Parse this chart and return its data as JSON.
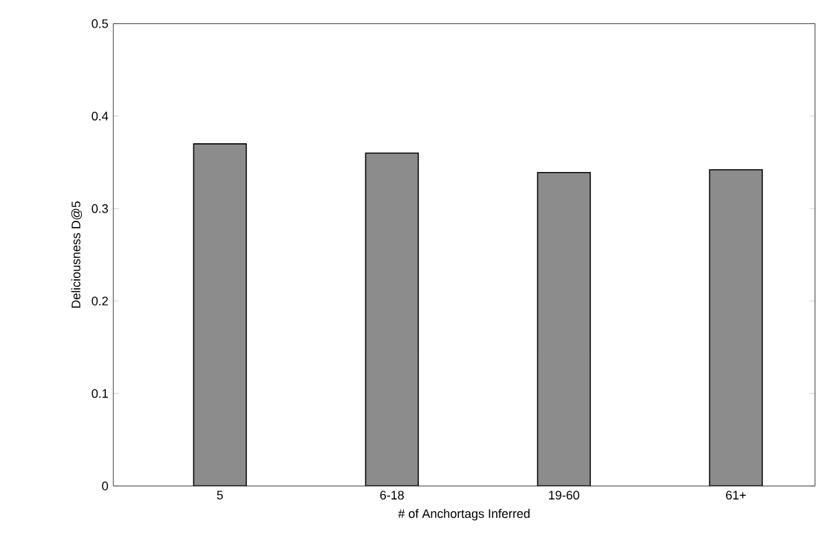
{
  "chart_data": {
    "type": "bar",
    "xlabel": "# of Anchortags Inferred",
    "ylabel": "Deliciousness D@5",
    "categories": [
      "5",
      "6-18",
      "19-60",
      "61+"
    ],
    "values": [
      0.37,
      0.36,
      0.339,
      0.342
    ],
    "color": "#8c8c8c",
    "ylim": [
      0,
      0.5
    ],
    "yticks": [
      0,
      0.1,
      0.2,
      0.3,
      0.4,
      0.5
    ],
    "grid": false
  }
}
